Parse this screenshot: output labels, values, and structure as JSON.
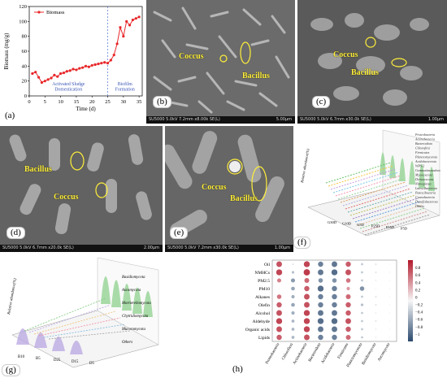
{
  "panels": {
    "a": {
      "label": "(a)"
    },
    "b": {
      "label": "(b)",
      "anno1": "Coccus",
      "anno2": "Bacillus",
      "bar_left": "SU5000 5.0kV 7.2mm x8.00k SE(L)",
      "bar_right": "5.00μm"
    },
    "c": {
      "label": "(c)",
      "anno1": "Coccus",
      "anno2": "Bacillus",
      "bar_left": "SU5000 5.0kV 6.7mm x30.0k SE(L)",
      "bar_right": "1.00μm"
    },
    "d": {
      "label": "(d)",
      "anno1": "Bacillus",
      "anno2": "Coccus",
      "bar_left": "SU5000 5.0kV 6.7mm x20.0k SE(L)",
      "bar_right": "2.00μm"
    },
    "e": {
      "label": "(e)",
      "anno1": "Coccus",
      "anno2": "Bacillus",
      "bar_left": "SU5000 5.0kV 7.2mm x30.0k SE(L)",
      "bar_right": "1.00μm"
    },
    "f": {
      "label": "(f)"
    },
    "g": {
      "label": "(g)"
    },
    "h": {
      "label": "(h)"
    }
  },
  "chart_data": [
    {
      "type": "line",
      "panel": "a",
      "legend": "Biomass",
      "xlabel": "Time (d)",
      "ylabel": "Biomass (mg/g)",
      "xlim": [
        0,
        36
      ],
      "ylim": [
        0,
        120
      ],
      "xticks": [
        0,
        5,
        10,
        15,
        20,
        25,
        30,
        35
      ],
      "yticks": [
        0,
        20,
        40,
        60,
        80,
        100,
        120
      ],
      "annotations": [
        "Activated Sludge Domestication",
        "Biofilm Formation"
      ],
      "divider_x": 25,
      "color": "#e8282b",
      "x": [
        1,
        2,
        3,
        4,
        5,
        6,
        7,
        8,
        9,
        10,
        11,
        12,
        13,
        14,
        15,
        16,
        17,
        18,
        19,
        20,
        21,
        22,
        23,
        24,
        25,
        26,
        27,
        28,
        29,
        30,
        31,
        32,
        33,
        34,
        35
      ],
      "y": [
        30,
        32,
        25,
        18,
        20,
        22,
        24,
        28,
        26,
        30,
        31,
        33,
        34,
        36,
        35,
        37,
        38,
        40,
        39,
        41,
        42,
        43,
        44,
        45,
        44,
        48,
        55,
        70,
        92,
        80,
        100,
        95,
        102,
        104,
        106
      ]
    },
    {
      "type": "area",
      "panel": "f",
      "zlabel": "Relative abundance(%)",
      "categories": [
        "G30D",
        "G10D",
        "G5D",
        "P25D",
        "P15D",
        "P5D"
      ],
      "series_labels": [
        "Proteobacteria",
        "Actinobacteria",
        "Bacteroidota",
        "Chloroflexi",
        "Firmicutes",
        "Planctomycetota",
        "Acidobacteriota",
        "WPS-2",
        "Gemmatimonadota",
        "Myxococcota",
        "Deinococcota",
        "Nitrospirota",
        "Latescibacterota",
        "Patescibacteria",
        "Cyanobacteria",
        "Desulfobacterota",
        "Others"
      ]
    },
    {
      "type": "area",
      "panel": "g",
      "zlabel": "Relative abundance(%)",
      "categories": [
        "B10",
        "B5",
        "D25",
        "D15",
        "D5"
      ],
      "series_labels": [
        "Basidiomycota",
        "Ascomycota",
        "Mortierellomycota",
        "Chytridiomycota",
        "Mucoromycota",
        "Others"
      ]
    },
    {
      "type": "heatmap",
      "panel": "h",
      "rows": [
        "Oil",
        "NMHCs",
        "PM2.5",
        "PM10",
        "Alkanes",
        "Olefin",
        "Alcohol",
        "Aldehyde",
        "Organic acids",
        "Lipids"
      ],
      "columns": [
        "Proteobacteria",
        "Chloroflexi",
        "Actinobacteria",
        "Bacteroidota",
        "Acidobacteria",
        "Firmicutes",
        "Planctomycetota",
        "Basidiomycota",
        "Ascomycota"
      ],
      "values": [
        [
          0.75,
          -0.2,
          0.8,
          -0.7,
          -0.75,
          0.7,
          -0.3,
          -0.2,
          -0.1
        ],
        [
          0.8,
          -0.35,
          0.85,
          -0.75,
          -0.8,
          0.75,
          -0.3,
          -0.2,
          -0.1
        ],
        [
          0.55,
          -0.55,
          0.65,
          -0.6,
          -0.6,
          0.6,
          -0.3,
          -0.15,
          -0.1
        ],
        [
          -0.1,
          -0.5,
          0.7,
          -0.8,
          -0.7,
          0.45,
          -0.6,
          0.1,
          -0.1
        ],
        [
          0.6,
          -0.45,
          0.75,
          -0.7,
          -0.7,
          0.65,
          -0.3,
          -0.2,
          -0.1
        ],
        [
          0.7,
          -0.5,
          0.75,
          -0.7,
          -0.7,
          0.7,
          -0.35,
          -0.2,
          -0.1
        ],
        [
          0.75,
          -0.45,
          0.8,
          -0.75,
          -0.75,
          0.7,
          -0.3,
          -0.15,
          -0.1
        ],
        [
          0.8,
          -0.4,
          0.8,
          -0.8,
          -0.8,
          0.75,
          -0.3,
          -0.2,
          -0.1
        ],
        [
          0.75,
          -0.4,
          0.8,
          -0.75,
          -0.75,
          0.7,
          -0.3,
          -0.15,
          -0.1
        ],
        [
          0.7,
          -0.4,
          0.75,
          -0.7,
          -0.7,
          0.65,
          -0.3,
          -0.15,
          -0.1
        ]
      ],
      "colorbar_ticks": [
        "0.8",
        "0.6",
        "0.4",
        "0.2",
        "0",
        "−0.2",
        "−0.4",
        "−0.6",
        "−0.8",
        "−1"
      ],
      "colors": {
        "positive": "#b2182b",
        "negative": "#2c4a6e"
      }
    }
  ]
}
